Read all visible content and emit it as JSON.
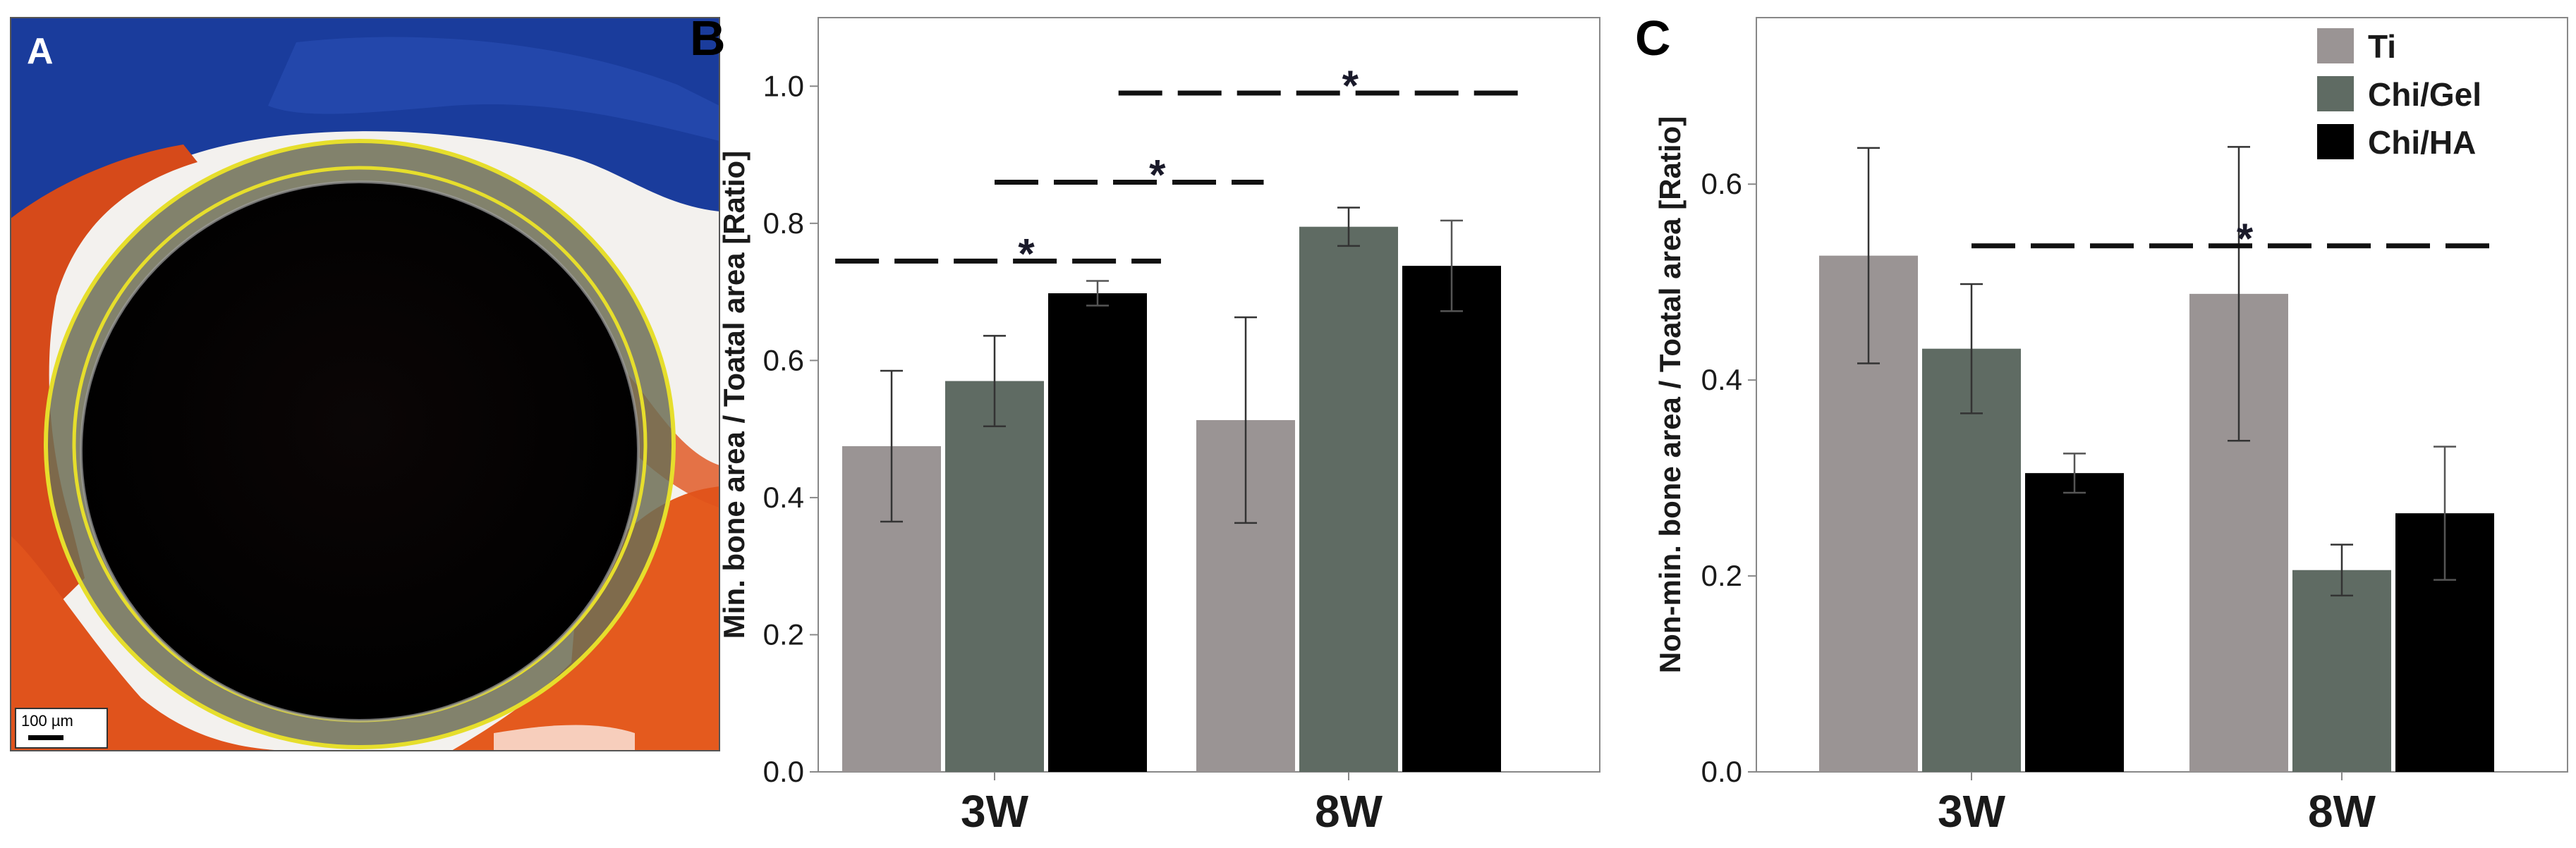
{
  "panel_a": {
    "letter": "A",
    "scale_bar_label": "100 µm"
  },
  "chart_data": [
    {
      "panel": "B",
      "type": "bar",
      "categories": [
        "3W",
        "8W"
      ],
      "series": [
        {
          "name": "Ti",
          "values": [
            0.475,
            0.513
          ],
          "errors": [
            0.11,
            0.15
          ]
        },
        {
          "name": "Chi/Gel",
          "values": [
            0.57,
            0.795
          ],
          "errors": [
            0.066,
            0.028
          ]
        },
        {
          "name": "Chi/HA",
          "values": [
            0.698,
            0.738
          ],
          "errors": [
            0.018,
            0.066
          ]
        }
      ],
      "ylabel": "Min. bone area / Toatal area [Ratio]",
      "ylim": [
        0,
        1.1
      ],
      "yticks": [
        0.0,
        0.2,
        0.4,
        0.6,
        0.8,
        1.0
      ],
      "ytick_labels": [
        "0.0",
        "0.2",
        "0.4",
        "0.6",
        "0.8",
        "1.0"
      ],
      "significance": [
        {
          "y": 0.745,
          "from": "3W",
          "to": "8W",
          "label": "*",
          "x_start": -0.45,
          "x_end": 0.47
        },
        {
          "y": 0.86,
          "from": "3W",
          "to": "8W",
          "label": "*",
          "x_start": -0.0,
          "x_end": 0.76
        },
        {
          "y": 0.99,
          "from": "3W",
          "to": "8W",
          "label": "*",
          "x_start": 0.35,
          "x_end": 1.5
        }
      ]
    },
    {
      "panel": "C",
      "type": "bar",
      "categories": [
        "3W",
        "8W"
      ],
      "series": [
        {
          "name": "Ti",
          "values": [
            0.527,
            0.488
          ],
          "errors": [
            0.11,
            0.15
          ]
        },
        {
          "name": "Chi/Gel",
          "values": [
            0.432,
            0.206
          ],
          "errors": [
            0.066,
            0.026
          ]
        },
        {
          "name": "Chi/HA",
          "values": [
            0.305,
            0.264
          ],
          "errors": [
            0.02,
            0.068
          ]
        }
      ],
      "ylabel": "Non-min. bone area / Toatal area [Ratio]",
      "ylim": [
        0,
        0.77
      ],
      "yticks": [
        0.0,
        0.2,
        0.4,
        0.6
      ],
      "ytick_labels": [
        "0.0",
        "0.2",
        "0.4",
        "0.6"
      ],
      "legend": {
        "position": "top-right",
        "entries": [
          "Ti",
          "Chi/Gel",
          "Chi/HA"
        ]
      },
      "significance": [
        {
          "y": 0.537,
          "from": "3W",
          "to": "8W",
          "label": "*",
          "x_start": 0.0,
          "x_end": 1.4
        }
      ]
    }
  ],
  "colors": {
    "Ti": "#9a9494",
    "Chi/Gel": "#5f6b63",
    "Chi/HA": "#000000",
    "axis": "#888888",
    "text": "#1a1a1a"
  }
}
